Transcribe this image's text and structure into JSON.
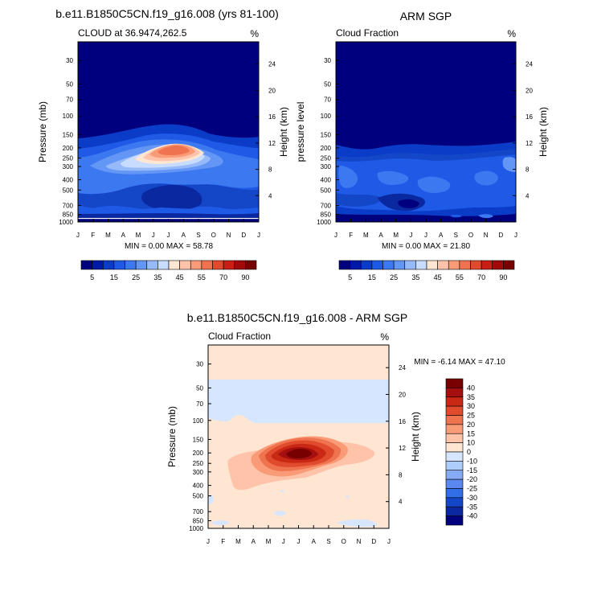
{
  "figure": {
    "panel_a_title": "b.e11.B1850C5CN.f19_g16.008 (yrs 81-100)",
    "panel_b_title": "ARM SGP",
    "panel_c_title": "b.e11.B1850C5CN.f19_g16.008 - ARM SGP"
  },
  "chart_data": [
    {
      "type": "heatmap",
      "id": "model",
      "subtitle_left": "CLOUD at 36.9474,262.5",
      "units": "%",
      "ylabel": "Pressure (mb)",
      "ylabel_right": "Height (km)",
      "x_ticks": [
        "J",
        "F",
        "M",
        "A",
        "M",
        "J",
        "J",
        "A",
        "S",
        "O",
        "N",
        "D",
        "J"
      ],
      "y_ticks": [
        30,
        50,
        70,
        100,
        150,
        200,
        250,
        300,
        400,
        500,
        700,
        850,
        1000
      ],
      "y_range": [
        20,
        1000
      ],
      "height_ticks": [
        24,
        20,
        16,
        12,
        8,
        4
      ],
      "min_max_text": "MIN =   0.00 MAX =  58.78",
      "colorbar": {
        "labels": [
          "5",
          "15",
          "25",
          "35",
          "45",
          "55",
          "70",
          "90"
        ],
        "colors": [
          "#00007F",
          "#0018A8",
          "#0A3CC8",
          "#1E5AE6",
          "#3C78F0",
          "#6496F5",
          "#96B9FA",
          "#C8DCFF",
          "#FFE6D2",
          "#FFC3AA",
          "#FA9B78",
          "#F07350",
          "#E14B2D",
          "#C81E14",
          "#A00A0A",
          "#780000"
        ]
      },
      "features": [
        {
          "region": "stratosphere 30-150 mb",
          "value": 0
        },
        {
          "region": "upper troposphere band",
          "value": 10
        },
        {
          "region": "jet-season maximum ~230 mb Jun-Jul",
          "value": 58.78
        },
        {
          "region": "lower troposphere",
          "value": 8
        }
      ]
    },
    {
      "type": "heatmap",
      "id": "obs",
      "subtitle_left": "Cloud Fraction",
      "units": "%",
      "ylabel": "pressure level",
      "ylabel_right": "Height (km)",
      "x_ticks": [
        "J",
        "F",
        "M",
        "A",
        "M",
        "J",
        "J",
        "A",
        "S",
        "O",
        "N",
        "D",
        "J"
      ],
      "y_ticks": [
        30,
        50,
        70,
        100,
        150,
        200,
        250,
        300,
        400,
        500,
        700,
        850,
        1000
      ],
      "y_range": [
        20,
        1000
      ],
      "height_ticks": [
        24,
        20,
        16,
        12,
        8,
        4
      ],
      "min_max_text": "MIN =   0.00 MAX =  21.80",
      "colorbar": {
        "labels": [
          "5",
          "15",
          "25",
          "35",
          "45",
          "55",
          "70",
          "90"
        ],
        "colors": [
          "#00007F",
          "#0018A8",
          "#0A3CC8",
          "#1E5AE6",
          "#3C78F0",
          "#6496F5",
          "#96B9FA",
          "#C8DCFF",
          "#FFE6D2",
          "#FFC3AA",
          "#FA9B78",
          "#F07350",
          "#E14B2D",
          "#C81E14",
          "#A00A0A",
          "#780000"
        ]
      },
      "features": [
        {
          "region": "above 200 mb",
          "value": 0
        },
        {
          "region": "200-1000 mb",
          "value": 10
        },
        {
          "region": "maximum",
          "value": 21.8
        }
      ]
    },
    {
      "type": "heatmap",
      "id": "difference",
      "subtitle_left": "Cloud Fraction",
      "units": "%",
      "ylabel": "Pressure (mb)",
      "ylabel_right": "Height (km)",
      "x_ticks": [
        "J",
        "F",
        "M",
        "A",
        "M",
        "J",
        "J",
        "A",
        "S",
        "O",
        "N",
        "D",
        "J"
      ],
      "y_ticks": [
        30,
        50,
        70,
        100,
        150,
        200,
        250,
        300,
        400,
        500,
        700,
        850,
        1000
      ],
      "y_range": [
        20,
        1000
      ],
      "height_ticks": [
        24,
        20,
        16,
        12,
        8,
        4
      ],
      "min_max_text": "MIN =  -6.14 MAX =  47.10",
      "colorbar": {
        "labels": [
          "40",
          "35",
          "30",
          "25",
          "20",
          "15",
          "10",
          "0",
          "-10",
          "-15",
          "-20",
          "-25",
          "-30",
          "-35",
          "-40"
        ],
        "colors": [
          "#780000",
          "#A50F0F",
          "#C82814",
          "#E14B2D",
          "#F07350",
          "#FA9B78",
          "#FFC3AA",
          "#FFE6D2",
          "#D7E6FF",
          "#AFCDFA",
          "#87AAF5",
          "#5A87F0",
          "#326EE6",
          "#1446C8",
          "#0A28A0",
          "#00007F"
        ]
      },
      "features": [
        {
          "region": "30-50 mb",
          "value": 5
        },
        {
          "region": "50-120 mb",
          "value": -5
        },
        {
          "region": "below 120 mb",
          "value": 5
        },
        {
          "region": "jet-season maximum ~220 mb Jun-Jul",
          "value": 47.1
        }
      ]
    }
  ]
}
